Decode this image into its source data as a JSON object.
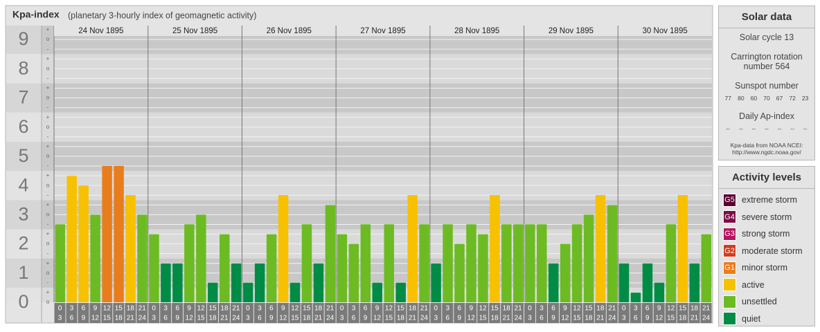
{
  "chart_data": {
    "type": "bar",
    "title": "Kpa-index",
    "subtitle": "(planetary 3-hourly index of geomagnetic activity)",
    "ylim": [
      0,
      9.5
    ],
    "yticks": [
      0,
      1,
      2,
      3,
      4,
      5,
      6,
      7,
      8,
      9
    ],
    "minor_tick_labels": [
      "o",
      "+",
      "-"
    ],
    "intervals": [
      [
        0,
        3
      ],
      [
        3,
        6
      ],
      [
        6,
        9
      ],
      [
        9,
        12
      ],
      [
        12,
        15
      ],
      [
        15,
        18
      ],
      [
        18,
        21
      ],
      [
        21,
        24
      ]
    ],
    "days": [
      {
        "date": "24 Nov 1895",
        "values": [
          2.67,
          4.33,
          4.0,
          3.0,
          4.67,
          4.67,
          3.67,
          3.0
        ],
        "colors": [
          "#6cbb23",
          "#f7c100",
          "#f7c100",
          "#6cbb23",
          "#e87d1e",
          "#e87d1e",
          "#f7c100",
          "#6cbb23"
        ]
      },
      {
        "date": "25 Nov 1895",
        "values": [
          2.33,
          1.33,
          1.33,
          2.67,
          3.0,
          0.67,
          2.33,
          1.33
        ],
        "colors": [
          "#6cbb23",
          "#008c45",
          "#008c45",
          "#6cbb23",
          "#6cbb23",
          "#008c45",
          "#6cbb23",
          "#008c45"
        ]
      },
      {
        "date": "26 Nov 1895",
        "values": [
          0.67,
          1.33,
          2.33,
          3.67,
          0.67,
          2.67,
          1.33,
          3.33
        ],
        "colors": [
          "#008c45",
          "#008c45",
          "#6cbb23",
          "#f7c100",
          "#008c45",
          "#6cbb23",
          "#008c45",
          "#6cbb23"
        ]
      },
      {
        "date": "27 Nov 1895",
        "values": [
          2.33,
          2.0,
          2.67,
          0.67,
          2.67,
          0.67,
          3.67,
          2.67
        ],
        "colors": [
          "#6cbb23",
          "#6cbb23",
          "#6cbb23",
          "#008c45",
          "#6cbb23",
          "#008c45",
          "#f7c100",
          "#6cbb23"
        ]
      },
      {
        "date": "28 Nov 1895",
        "values": [
          1.33,
          2.67,
          2.0,
          2.67,
          2.33,
          3.67,
          2.67,
          2.67
        ],
        "colors": [
          "#008c45",
          "#6cbb23",
          "#6cbb23",
          "#6cbb23",
          "#6cbb23",
          "#f7c100",
          "#6cbb23",
          "#6cbb23"
        ]
      },
      {
        "date": "29 Nov 1895",
        "values": [
          2.67,
          2.67,
          1.33,
          2.0,
          2.67,
          3.0,
          3.67,
          3.33
        ],
        "colors": [
          "#6cbb23",
          "#6cbb23",
          "#008c45",
          "#6cbb23",
          "#6cbb23",
          "#6cbb23",
          "#f7c100",
          "#6cbb23"
        ]
      },
      {
        "date": "30 Nov 1895",
        "values": [
          1.33,
          0.33,
          1.33,
          0.67,
          2.67,
          3.67,
          1.33,
          2.33
        ],
        "colors": [
          "#008c45",
          "#008c45",
          "#008c45",
          "#008c45",
          "#6cbb23",
          "#f7c100",
          "#008c45",
          "#6cbb23"
        ]
      }
    ]
  },
  "solar_data": {
    "title": "Solar data",
    "cycle": "Solar cycle 13",
    "carrington": "Carrington rotation number 564",
    "sunspot_title": "Sunspot number",
    "sunspots": [
      77,
      80,
      60,
      70,
      67,
      72,
      23
    ],
    "ap_title": "Daily Ap-index",
    "ap": [
      "--",
      "--",
      "--",
      "--",
      "--",
      "--",
      "--"
    ],
    "source": "Kpa-data from NOAA NCEI:",
    "url": "http://www.ngdc.noaa.gov/"
  },
  "activity_levels": {
    "title": "Activity levels",
    "items": [
      {
        "badge": "G5",
        "label": "extreme storm",
        "color": "#5a0030"
      },
      {
        "badge": "G4",
        "label": "severe storm",
        "color": "#7d0b45"
      },
      {
        "badge": "G3",
        "label": "strong storm",
        "color": "#b3155e"
      },
      {
        "badge": "G2",
        "label": "moderate storm",
        "color": "#d23c1c"
      },
      {
        "badge": "G1",
        "label": "minor storm",
        "color": "#e87d1e"
      },
      {
        "badge": null,
        "label": "active",
        "color": "#f7c100"
      },
      {
        "badge": null,
        "label": "unsettled",
        "color": "#6cbb23"
      },
      {
        "badge": null,
        "label": "quiet",
        "color": "#008c45"
      }
    ]
  }
}
